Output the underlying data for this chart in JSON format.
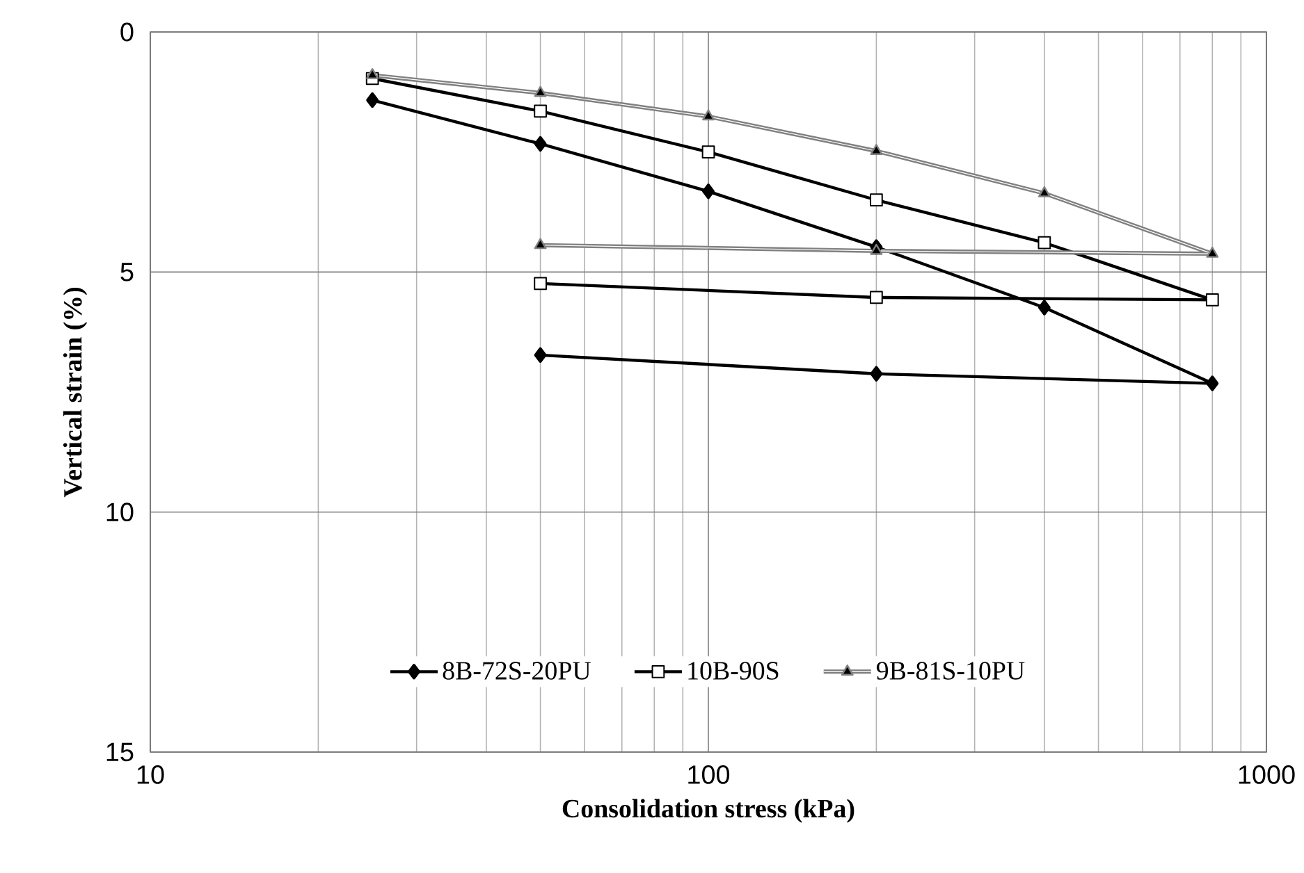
{
  "chart_data": {
    "type": "line",
    "xlabel": "Consolidation stress (kPa)",
    "ylabel": "Vertical strain (%)",
    "log": "x",
    "xlim": [
      10,
      1000
    ],
    "xticks": [
      10,
      100,
      1000
    ],
    "ylim": [
      15,
      0
    ],
    "yticks": [
      0,
      5,
      10,
      15
    ],
    "grid": true,
    "legend": "bottom",
    "series": [
      {
        "name": "8B-72S-20PU",
        "color": "#000000",
        "marker": "diamond",
        "x": [
          25,
          50,
          100,
          200,
          400,
          800,
          200,
          50
        ],
        "values": [
          1.42,
          2.33,
          3.32,
          4.48,
          5.74,
          7.32,
          7.12,
          6.73
        ]
      },
      {
        "name": "10B-90S",
        "color": "#000000",
        "marker": "square",
        "x": [
          25,
          50,
          100,
          200,
          400,
          800,
          200,
          50
        ],
        "values": [
          0.97,
          1.65,
          2.5,
          3.5,
          4.39,
          5.58,
          5.53,
          5.24
        ]
      },
      {
        "name": "9B-81S-10PU",
        "color": "#808080",
        "marker": "triangle",
        "x": [
          25,
          50,
          100,
          200,
          400,
          800,
          200,
          50
        ],
        "values": [
          0.9,
          1.27,
          1.76,
          2.48,
          3.36,
          4.62,
          4.56,
          4.44
        ]
      }
    ]
  }
}
